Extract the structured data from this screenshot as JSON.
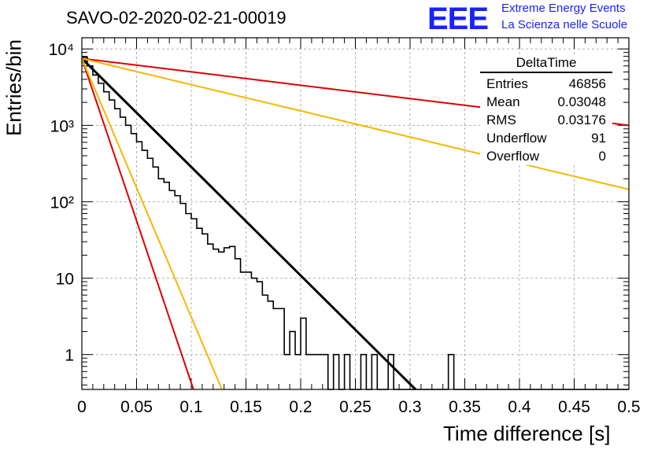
{
  "title": "SAVO-02-2020-02-21-00019",
  "logo": {
    "mark": "EEE",
    "line1": "Extreme Energy Events",
    "line2": "La Scienza nelle Scuole",
    "color": "#1a22ff"
  },
  "stats": {
    "title": "DeltaTime",
    "rows": [
      {
        "label": "Entries",
        "value": "46856"
      },
      {
        "label": "Mean",
        "value": "0.03048"
      },
      {
        "label": "RMS",
        "value": "0.03176"
      },
      {
        "label": "Underflow",
        "value": "91"
      },
      {
        "label": "Overflow",
        "value": "0"
      }
    ]
  },
  "chart_data": {
    "type": "histogram",
    "title": "SAVO-02-2020-02-21-00019",
    "xlabel": "Time difference [s]",
    "ylabel": "Entries/bin",
    "xlim": [
      0,
      0.5
    ],
    "ylim": [
      0.35,
      14000
    ],
    "yscale": "log",
    "grid": true,
    "legend": "top-right",
    "xticks": [
      "0",
      "0.05",
      "0.1",
      "0.15",
      "0.2",
      "0.25",
      "0.3",
      "0.35",
      "0.4",
      "0.45",
      "0.5"
    ],
    "yticks": [
      {
        "value": 1,
        "label": "1"
      },
      {
        "value": 10,
        "label": "10"
      },
      {
        "value": 100,
        "label": "10²"
      },
      {
        "value": 1000,
        "label": "10³"
      },
      {
        "value": 10000,
        "label": "10⁴"
      }
    ],
    "bin_width": 0.005,
    "histogram": [
      7800,
      6000,
      4550,
      3550,
      2750,
      2150,
      1650,
      1280,
      1000,
      780,
      610,
      470,
      370,
      285,
      200,
      180,
      140,
      120,
      95,
      70,
      60,
      45,
      38,
      28,
      24,
      22,
      25,
      26,
      18,
      12,
      12,
      10,
      9,
      6,
      5,
      4,
      4,
      1,
      2,
      1,
      3,
      1,
      1,
      1,
      1,
      0,
      1,
      0,
      1,
      0,
      0,
      1,
      0,
      1,
      0,
      0,
      1,
      0,
      0,
      0,
      0,
      0,
      0,
      0,
      0,
      0,
      0,
      1,
      0,
      0,
      0,
      0,
      0,
      0,
      0,
      0,
      0,
      0,
      0,
      0,
      0,
      0,
      0,
      0,
      0,
      0,
      0,
      0,
      0,
      0,
      0,
      0,
      0,
      0,
      0,
      0,
      0,
      0,
      0,
      0
    ],
    "fits": [
      {
        "color": "#000000",
        "y0": 7500,
        "x1": 0.305,
        "y1": 0.35
      },
      {
        "color": "#dd0000",
        "y0": 7500,
        "x1": 0.5,
        "y1": 1000
      },
      {
        "color": "#f5b800",
        "y0": 7500,
        "x1": 0.5,
        "y1": 145
      },
      {
        "color": "#dd0000",
        "y0": 7500,
        "x1": 0.102,
        "y1": 0.35
      },
      {
        "color": "#f5b800",
        "y0": 7500,
        "x1": 0.128,
        "y1": 0.35
      }
    ]
  }
}
